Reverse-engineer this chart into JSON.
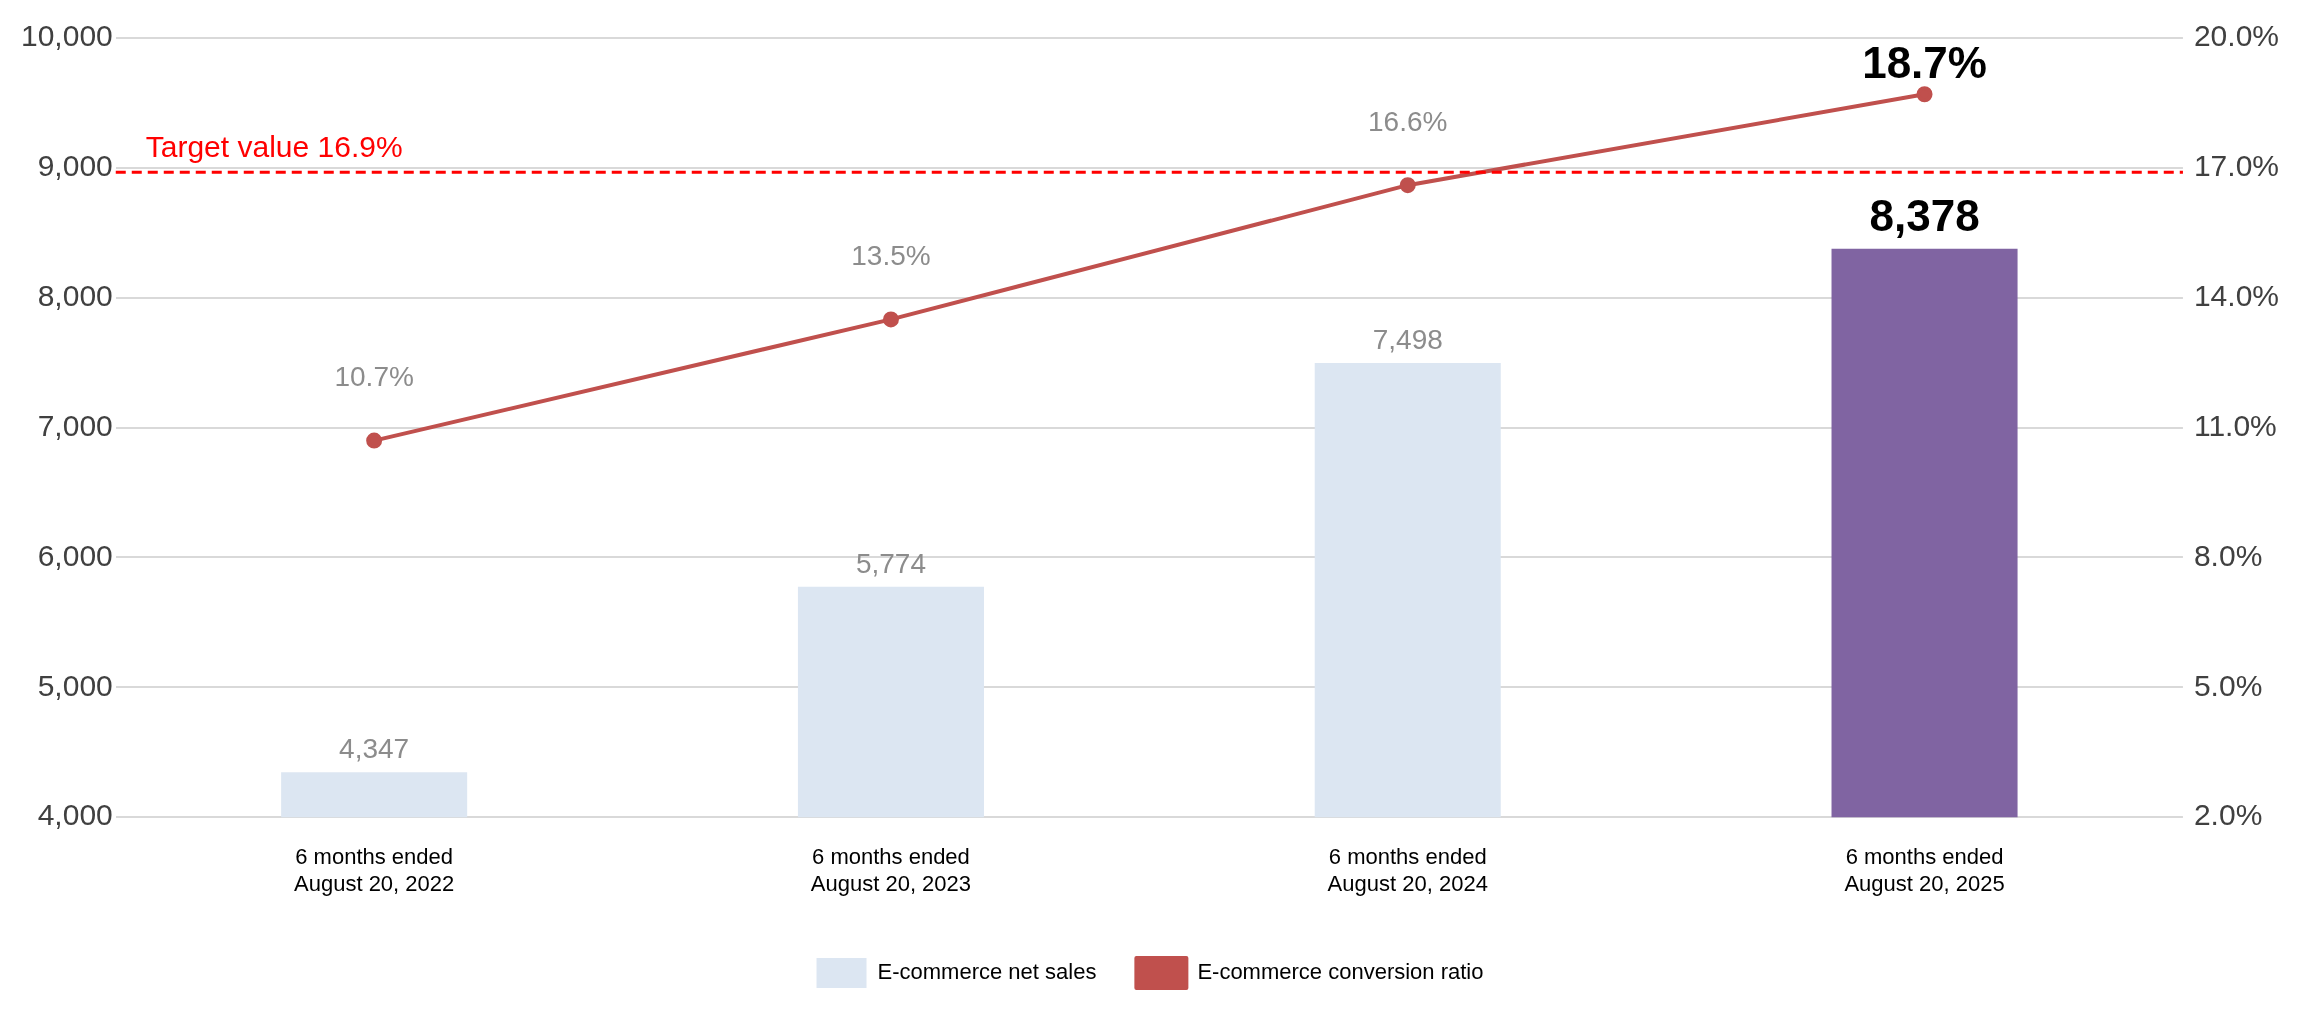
{
  "chart_data": {
    "type": "bar",
    "categories": [
      "6 months ended\nAugust 20, 2022",
      "6 months ended\nAugust 20, 2023",
      "6 months ended\nAugust 20, 2024",
      "6 months ended\nAugust 20, 2025"
    ],
    "series": [
      {
        "name": "E-commerce net sales",
        "colors": [
          "#dce6f2",
          "#dce6f2",
          "#dce6f2",
          "#8064a2"
        ],
        "values": [
          4347,
          5774,
          7498,
          8378
        ],
        "value_labels": [
          "4,347",
          "5,774",
          "7,498",
          "8,378"
        ]
      },
      {
        "name": "E-commerce conversion ratio",
        "type": "line",
        "axis": "y2",
        "color": "#c0504d",
        "values": [
          10.7,
          13.5,
          16.6,
          18.7
        ],
        "value_labels": [
          "10.7%",
          "13.5%",
          "16.6%",
          "18.7%"
        ]
      }
    ],
    "ylim": [
      4000,
      10000
    ],
    "yticks": [
      {
        "value": 4000,
        "label": "4,000"
      },
      {
        "value": 5000,
        "label": "5,000"
      },
      {
        "value": 6000,
        "label": "6,000"
      },
      {
        "value": 7000,
        "label": "7,000"
      },
      {
        "value": 8000,
        "label": "8,000"
      },
      {
        "value": 9000,
        "label": "9,000"
      },
      {
        "value": 10000,
        "label": "10,000"
      }
    ],
    "y2lim": [
      2,
      20
    ],
    "y2ticks": [
      {
        "value": 2,
        "label": "2.0%"
      },
      {
        "value": 5,
        "label": "5.0%"
      },
      {
        "value": 8,
        "label": "8.0%"
      },
      {
        "value": 11,
        "label": "11.0%"
      },
      {
        "value": 14,
        "label": "14.0%"
      },
      {
        "value": 17,
        "label": "17.0%"
      },
      {
        "value": 20,
        "label": "20.0%"
      }
    ],
    "ref_lines": [
      {
        "axis": "y2",
        "value": 16.9,
        "label": "Target value 16.9%",
        "color": "#ff0000",
        "line_style": "dashed"
      }
    ],
    "grid": "y",
    "legend": "bottom",
    "marker": "circle"
  }
}
